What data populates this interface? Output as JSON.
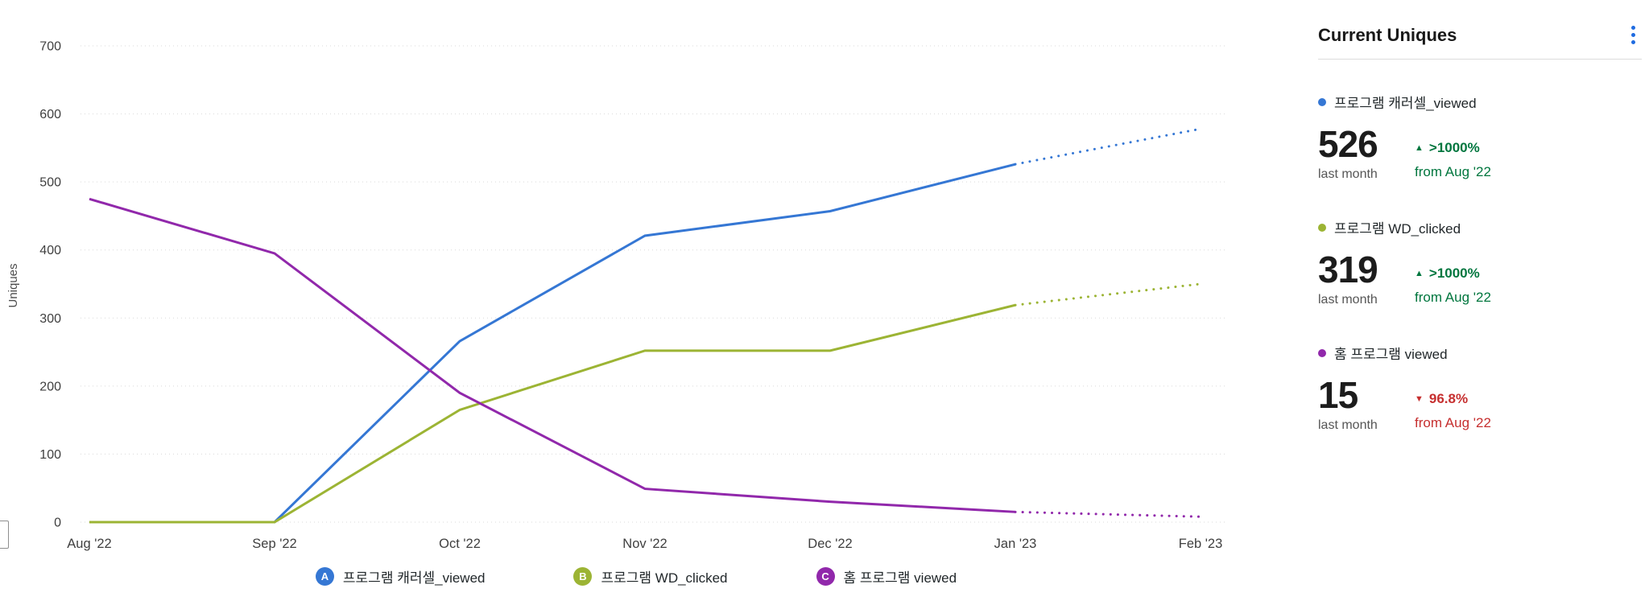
{
  "chart_data": {
    "type": "line",
    "title": "",
    "ylabel": "Uniques",
    "xlabel": "",
    "ylim": [
      0,
      700
    ],
    "yticks": [
      0,
      100,
      200,
      300,
      400,
      500,
      600,
      700
    ],
    "grid": true,
    "legend_position": "bottom",
    "x": [
      "Aug '22",
      "Sep '22",
      "Oct '22",
      "Nov '22",
      "Dec '22",
      "Jan '23",
      "Feb '23"
    ],
    "projected_from_index": 5,
    "series": [
      {
        "name": "프로그램 캐러셀_viewed",
        "marker": "A",
        "color": "#3577d4",
        "values": [
          0,
          0,
          266,
          421,
          457,
          526,
          578
        ]
      },
      {
        "name": "프로그램 WD_clicked",
        "marker": "B",
        "color": "#9cb434",
        "values": [
          0,
          0,
          165,
          252,
          252,
          319,
          350
        ]
      },
      {
        "name": "홈 프로그램 viewed",
        "marker": "C",
        "color": "#9128ab",
        "values": [
          475,
          395,
          190,
          49,
          30,
          15,
          8
        ]
      }
    ]
  },
  "panel": {
    "title": "Current Uniques",
    "menu_icon": "kebab-vertical-icon",
    "stats": [
      {
        "label": "프로그램 캐러셀_viewed",
        "color": "#3577d4",
        "value": "526",
        "period": "last month",
        "arrow": "▲",
        "trend": "up",
        "change": ">1000%",
        "compare": "from Aug '22"
      },
      {
        "label": "프로그램 WD_clicked",
        "color": "#9cb434",
        "value": "319",
        "period": "last month",
        "arrow": "▲",
        "trend": "up",
        "change": ">1000%",
        "compare": "from Aug '22"
      },
      {
        "label": "홈 프로그램 viewed",
        "color": "#9128ab",
        "value": "15",
        "period": "last month",
        "arrow": "▼",
        "trend": "down",
        "change": "96.8%",
        "compare": "from Aug '22"
      }
    ]
  },
  "colors": {
    "positive": "#00763e",
    "negative": "#c62f2f",
    "accent": "#1f6be0",
    "gridline": "#d9d9d9",
    "tick_text": "#404040"
  }
}
